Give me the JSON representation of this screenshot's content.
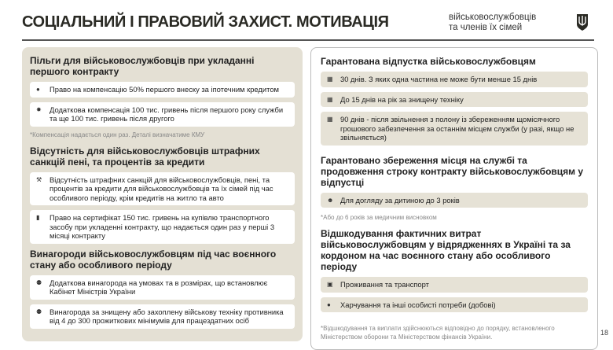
{
  "header": {
    "title": "СОЦІАЛЬНИЙ І ПРАВОВИЙ ЗАХИСТ. МОТИВАЦІЯ",
    "subtitle_line1": "військовослужбовців",
    "subtitle_line2": "та членів їх сімей",
    "emblem": "trident-emblem"
  },
  "left": {
    "s1": {
      "heading": "Пільги для військовослужбовців при укладанні першого контракту",
      "items": [
        {
          "icon": "percent-icon",
          "text": "Право на компенсацію 50% першого внеску за іпотечним кредитом"
        },
        {
          "icon": "badge-icon",
          "text": "Додаткова компенсація 100 тис. гривень після першого року служби та ще 100 тис. гривень після другого"
        }
      ],
      "note": "*Компенсація надається один раз. Деталі визначатиме КМУ"
    },
    "s2": {
      "heading": "Відсутність для військовослужбовців штрафних санкцій пені, та процентів за кредити",
      "items": [
        {
          "icon": "gavel-icon",
          "text": "Відсутність штрафних санкцій для військовослужбовців, пені, та процентів за кредити для військовослужбовців та їх сімей під час особливого періоду, крім кредитів на житло та авто"
        },
        {
          "icon": "certificate-icon",
          "text": "Право на сертифікат 150 тис. гривень на купівлю транспортного засобу при укладенні контракту, що надається один раз у перші 3 місяці контракту"
        }
      ]
    },
    "s3": {
      "heading": "Винагороди військовослужбовцям під час воєнного стану або особливого періоду",
      "items": [
        {
          "icon": "award-icon",
          "text": "Додаткова винагорода на умовах та в розмірах, що встановлює Кабінет Міністрів України"
        },
        {
          "icon": "award-icon",
          "text": "Винагорода за знищену або захоплену військову техніку противника від 4 до 300 прожиткових мінімумів для працездатних осіб"
        }
      ]
    }
  },
  "right": {
    "s1": {
      "heading": "Гарантована відпустка військовослужбовцям",
      "items": [
        {
          "icon": "calendar-icon",
          "text": "30 днів. З яких одна частина не може бути менше 15 днів"
        },
        {
          "icon": "calendar-icon",
          "text": "До 15 днів на рік за знищену техніку"
        },
        {
          "icon": "calendar-icon",
          "text": "90 днів - після звільнення з полону із збереженням щомісячного грошового забезпечення за останнім місцем служби (у разі, якщо не звільняється)"
        }
      ]
    },
    "s2": {
      "heading": "Гарантовано збереження місця на службі та продовження строку контракту військовослужбовцям у відпустці",
      "items": [
        {
          "icon": "child-icon",
          "text": "Для догляду за дитиною до 3 років"
        }
      ],
      "note": "*Або до 6 років за медичним висновком"
    },
    "s3": {
      "heading": "Відшкодування фактичних витрат військовослужбовцям у відрядженнях в Україні та за кордоном на час воєнного стану або особливого періоду",
      "items": [
        {
          "icon": "bus-icon",
          "text": "Проживання та транспорт"
        },
        {
          "icon": "apple-icon",
          "text": "Харчування та інші особисті потреби (добові)"
        }
      ]
    },
    "footnote": "*Відшкодування та виплати здійснюються відповідно до порядку, встановленого Міністерством оборони та Міністерством фінансів України."
  },
  "page_number": "18"
}
